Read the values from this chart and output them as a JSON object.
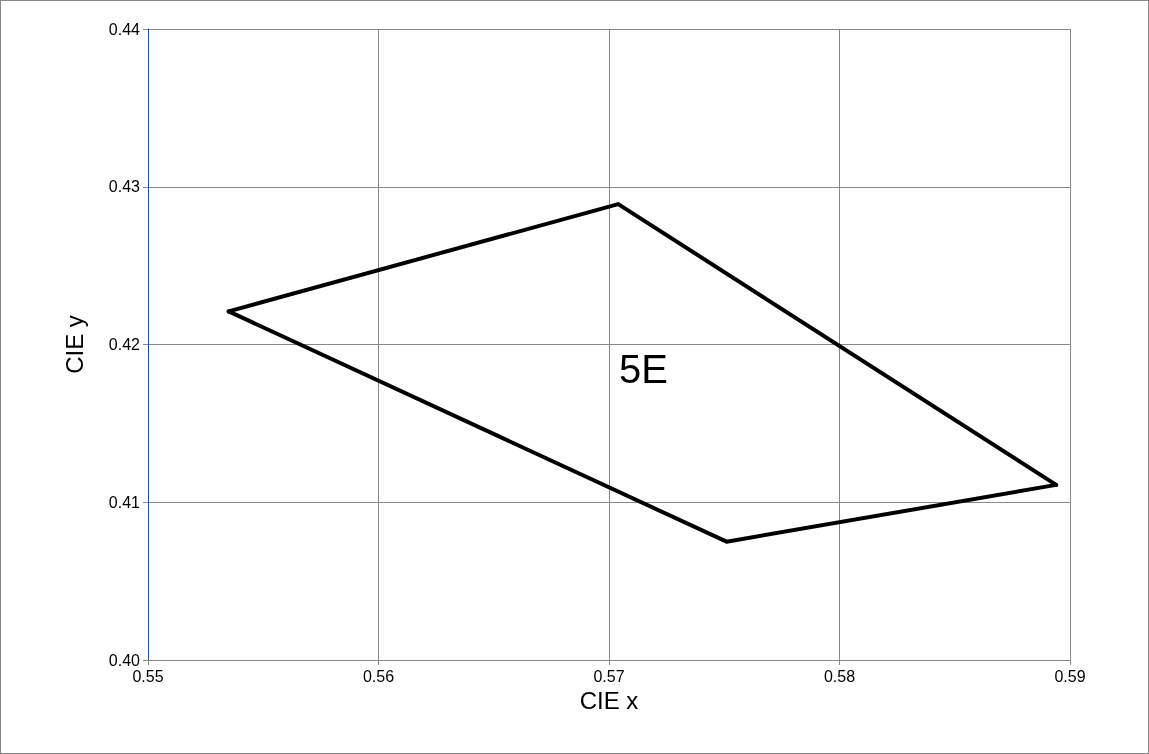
{
  "chart_data": {
    "type": "line",
    "xlabel": "CIE x",
    "ylabel": "CIE y",
    "series": [
      {
        "color": "#000000",
        "x": [
          0.5535,
          0.5704,
          0.5894
        ],
        "values": [
          0.4221,
          0.4289,
          0.4111
        ]
      },
      {
        "color": "#000000",
        "x": [
          0.5535,
          0.5751,
          0.5894
        ],
        "values": [
          0.4221,
          0.4075,
          0.4111
        ]
      }
    ],
    "xlim": [
      0.55,
      0.59
    ],
    "xticks": [
      0.55,
      0.56,
      0.57,
      0.58,
      0.59
    ],
    "ylim": [
      0.4,
      0.44
    ],
    "yticks": [
      {
        "value": 0.4,
        "label": "0.40"
      },
      {
        "value": 0.41,
        "label": "0.41"
      },
      {
        "value": 0.42,
        "label": "0.42"
      },
      {
        "value": 0.43,
        "label": "0.43"
      },
      {
        "value": 0.44,
        "label": "0.44"
      }
    ],
    "annotations": [
      "5E"
    ],
    "grid": true,
    "marker": "none",
    "line_style": "solid"
  }
}
